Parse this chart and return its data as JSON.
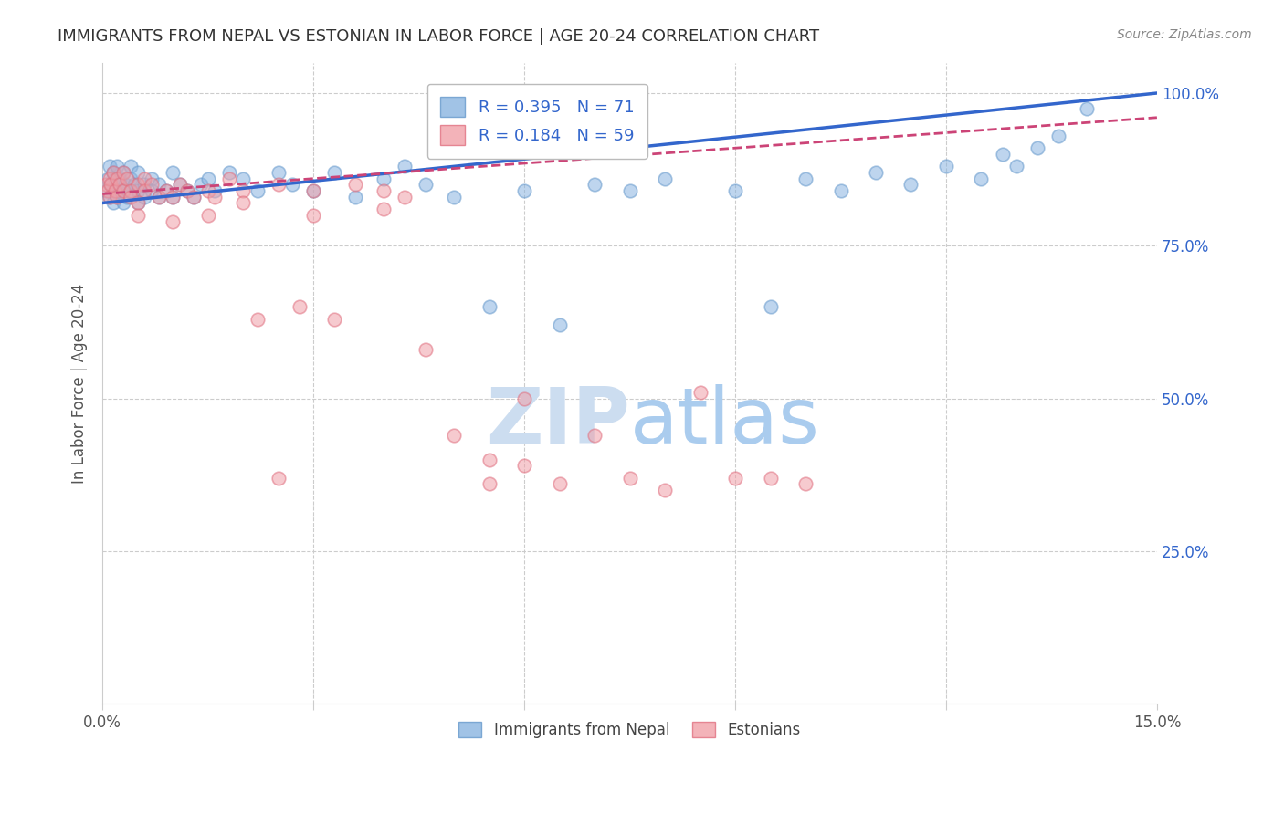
{
  "title": "IMMIGRANTS FROM NEPAL VS ESTONIAN IN LABOR FORCE | AGE 20-24 CORRELATION CHART",
  "source": "Source: ZipAtlas.com",
  "ylabel": "In Labor Force | Age 20-24",
  "xlim": [
    0.0,
    0.15
  ],
  "ylim": [
    0.0,
    1.05
  ],
  "legend_R_blue": "0.395",
  "legend_N_blue": "71",
  "legend_R_pink": "0.184",
  "legend_N_pink": "59",
  "blue_scatter_color": "#8ab4e0",
  "pink_scatter_color": "#f0a0a8",
  "blue_edge_color": "#6699cc",
  "pink_edge_color": "#e07080",
  "blue_line_color": "#3366cc",
  "pink_line_color": "#cc4477",
  "grid_color": "#cccccc",
  "title_color": "#333333",
  "axis_label_color": "#555555",
  "right_tick_color": "#3366cc",
  "source_color": "#888888",
  "watermark_zip_color": "#ccddf0",
  "watermark_atlas_color": "#aaccee",
  "nepal_x": [
    0.0005,
    0.0008,
    0.001,
    0.001,
    0.0012,
    0.0015,
    0.0015,
    0.0018,
    0.002,
    0.002,
    0.002,
    0.0022,
    0.0025,
    0.003,
    0.003,
    0.003,
    0.0032,
    0.0035,
    0.004,
    0.004,
    0.004,
    0.0045,
    0.005,
    0.005,
    0.005,
    0.006,
    0.006,
    0.007,
    0.007,
    0.008,
    0.008,
    0.009,
    0.01,
    0.01,
    0.011,
    0.012,
    0.013,
    0.014,
    0.015,
    0.016,
    0.018,
    0.02,
    0.022,
    0.025,
    0.027,
    0.03,
    0.033,
    0.036,
    0.04,
    0.043,
    0.046,
    0.05,
    0.055,
    0.06,
    0.065,
    0.07,
    0.075,
    0.08,
    0.09,
    0.095,
    0.1,
    0.105,
    0.11,
    0.115,
    0.12,
    0.125,
    0.128,
    0.13,
    0.133,
    0.136,
    0.14
  ],
  "nepal_y": [
    0.84,
    0.86,
    0.83,
    0.88,
    0.85,
    0.82,
    0.87,
    0.86,
    0.84,
    0.83,
    0.88,
    0.85,
    0.86,
    0.84,
    0.82,
    0.87,
    0.85,
    0.83,
    0.86,
    0.84,
    0.88,
    0.85,
    0.84,
    0.82,
    0.87,
    0.85,
    0.83,
    0.86,
    0.84,
    0.85,
    0.83,
    0.84,
    0.83,
    0.87,
    0.85,
    0.84,
    0.83,
    0.85,
    0.86,
    0.84,
    0.87,
    0.86,
    0.84,
    0.87,
    0.85,
    0.84,
    0.87,
    0.83,
    0.86,
    0.88,
    0.85,
    0.83,
    0.65,
    0.84,
    0.62,
    0.85,
    0.84,
    0.86,
    0.84,
    0.65,
    0.86,
    0.84,
    0.87,
    0.85,
    0.88,
    0.86,
    0.9,
    0.88,
    0.91,
    0.93,
    0.975
  ],
  "estonian_x": [
    0.0005,
    0.0008,
    0.001,
    0.001,
    0.0012,
    0.0015,
    0.0018,
    0.002,
    0.002,
    0.0025,
    0.003,
    0.003,
    0.0035,
    0.004,
    0.004,
    0.005,
    0.005,
    0.006,
    0.006,
    0.007,
    0.008,
    0.009,
    0.01,
    0.011,
    0.012,
    0.013,
    0.015,
    0.016,
    0.018,
    0.02,
    0.022,
    0.025,
    0.028,
    0.03,
    0.033,
    0.036,
    0.04,
    0.043,
    0.046,
    0.05,
    0.055,
    0.06,
    0.065,
    0.07,
    0.075,
    0.08,
    0.085,
    0.09,
    0.095,
    0.1,
    0.055,
    0.06,
    0.025,
    0.005,
    0.01,
    0.015,
    0.02,
    0.03,
    0.04
  ],
  "estonian_y": [
    0.85,
    0.84,
    0.86,
    0.83,
    0.85,
    0.87,
    0.84,
    0.86,
    0.83,
    0.85,
    0.84,
    0.87,
    0.86,
    0.84,
    0.83,
    0.85,
    0.82,
    0.86,
    0.84,
    0.85,
    0.83,
    0.84,
    0.83,
    0.85,
    0.84,
    0.83,
    0.84,
    0.83,
    0.86,
    0.84,
    0.63,
    0.85,
    0.65,
    0.84,
    0.63,
    0.85,
    0.84,
    0.83,
    0.58,
    0.44,
    0.36,
    0.5,
    0.36,
    0.44,
    0.37,
    0.35,
    0.51,
    0.37,
    0.37,
    0.36,
    0.4,
    0.39,
    0.37,
    0.8,
    0.79,
    0.8,
    0.82,
    0.8,
    0.81
  ],
  "nepal_line_x": [
    0.0,
    0.15
  ],
  "nepal_line_y": [
    0.82,
    1.0
  ],
  "estonian_line_x": [
    0.0,
    0.15
  ],
  "estonian_line_y": [
    0.835,
    0.96
  ]
}
